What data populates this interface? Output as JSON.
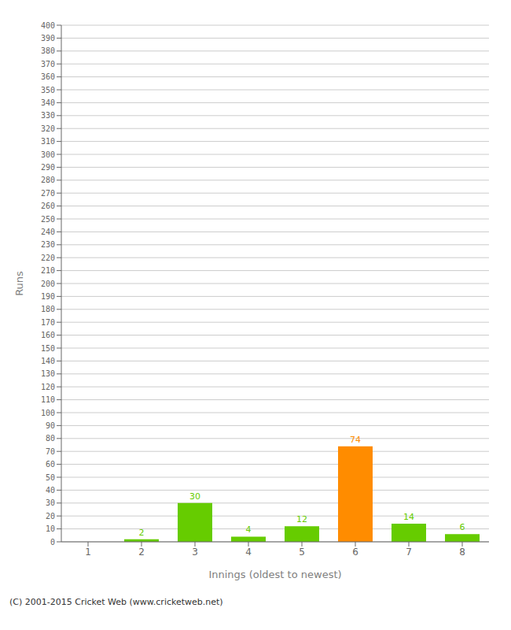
{
  "chart_data": {
    "type": "bar",
    "xlabel": "Innings (oldest to newest)",
    "ylabel": "Runs",
    "categories": [
      "1",
      "2",
      "3",
      "4",
      "5",
      "6",
      "7",
      "8"
    ],
    "values": [
      0,
      2,
      30,
      4,
      12,
      74,
      14,
      6
    ],
    "colors": [
      "#66cc00",
      "#66cc00",
      "#66cc00",
      "#66cc00",
      "#66cc00",
      "#ff8c00",
      "#66cc00",
      "#66cc00"
    ],
    "ylim": [
      0,
      400
    ],
    "yticks": [
      0,
      10,
      20,
      30,
      40,
      50,
      60,
      70,
      80,
      90,
      100,
      110,
      120,
      130,
      140,
      150,
      160,
      170,
      180,
      190,
      200,
      210,
      220,
      230,
      240,
      250,
      260,
      270,
      280,
      290,
      300,
      310,
      320,
      330,
      340,
      350,
      360,
      370,
      380,
      390,
      400
    ],
    "grid": true,
    "data_labels": true,
    "annotations": [
      "(C) 2001-2015 Cricket Web (www.cricketweb.net)"
    ]
  }
}
